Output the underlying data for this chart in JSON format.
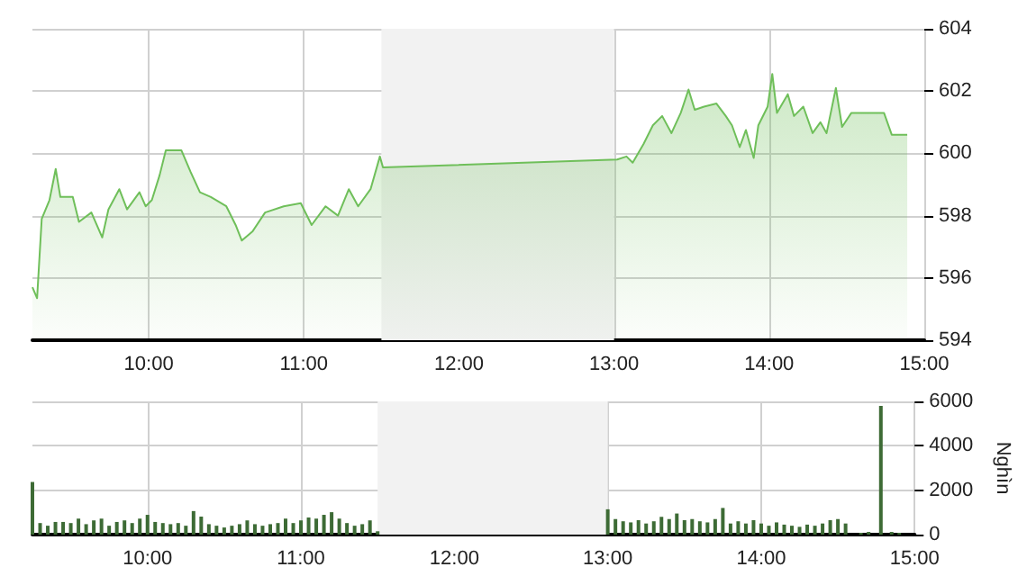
{
  "chart_data": [
    {
      "type": "area",
      "xlim": [
        9.25,
        15
      ],
      "xticks": [
        {
          "value": 10,
          "label": "10:00"
        },
        {
          "value": 11,
          "label": "11:00"
        },
        {
          "value": 12,
          "label": "12:00"
        },
        {
          "value": 13,
          "label": "13:00"
        },
        {
          "value": 14,
          "label": "14:00"
        },
        {
          "value": 15,
          "label": "15:00"
        }
      ],
      "ylim": [
        594,
        604
      ],
      "yticks": [
        594,
        596,
        598,
        600,
        602,
        604
      ],
      "grid": true,
      "bands": [
        {
          "axis": "x",
          "from": 11.5,
          "to": 13,
          "color": "#f2f2f2"
        }
      ],
      "series": [
        {
          "color": "#6fbf5a",
          "x": [
            9.25,
            9.28,
            9.31,
            9.36,
            9.4,
            9.43,
            9.51,
            9.55,
            9.63,
            9.7,
            9.74,
            9.81,
            9.86,
            9.94,
            9.98,
            10.02,
            10.07,
            10.11,
            10.15,
            10.21,
            10.27,
            10.33,
            10.4,
            10.5,
            10.56,
            10.6,
            10.67,
            10.75,
            10.87,
            10.98,
            11.05,
            11.14,
            11.22,
            11.29,
            11.35,
            11.43,
            11.49,
            11.51,
            13.02,
            13.08,
            13.12,
            13.19,
            13.25,
            13.31,
            13.37,
            13.43,
            13.48,
            13.52,
            13.58,
            13.66,
            13.72,
            13.76,
            13.81,
            13.85,
            13.9,
            13.93,
            13.99,
            14.02,
            14.05,
            14.12,
            14.16,
            14.22,
            14.28,
            14.33,
            14.37,
            14.43,
            14.47,
            14.53,
            14.74,
            14.79,
            14.89
          ],
          "values": [
            595.7,
            595.35,
            597.9,
            598.5,
            599.5,
            598.6,
            598.6,
            597.8,
            598.1,
            597.3,
            598.2,
            598.85,
            598.2,
            598.75,
            598.3,
            598.5,
            599.3,
            600.1,
            600.1,
            600.1,
            599.4,
            598.75,
            598.6,
            598.3,
            597.7,
            597.2,
            597.5,
            598.1,
            598.3,
            598.4,
            597.7,
            598.3,
            598.0,
            598.85,
            598.3,
            598.85,
            599.9,
            599.55,
            599.8,
            599.9,
            599.7,
            600.3,
            600.9,
            601.2,
            600.65,
            601.3,
            602.05,
            601.4,
            601.5,
            601.6,
            601.2,
            600.9,
            600.2,
            600.75,
            599.85,
            600.9,
            601.5,
            602.55,
            601.3,
            601.9,
            601.2,
            601.5,
            600.65,
            601.0,
            600.65,
            602.1,
            600.85,
            601.3,
            601.3,
            600.6,
            600.6
          ]
        }
      ]
    },
    {
      "type": "bar",
      "xlim": [
        9.25,
        15
      ],
      "xticks": [
        {
          "value": 10,
          "label": "10:00"
        },
        {
          "value": 11,
          "label": "11:00"
        },
        {
          "value": 12,
          "label": "12:00"
        },
        {
          "value": 13,
          "label": "13:00"
        },
        {
          "value": 14,
          "label": "14:00"
        },
        {
          "value": 15,
          "label": "15:00"
        }
      ],
      "ylim": [
        0,
        6000
      ],
      "yticks": [
        0,
        2000,
        4000,
        6000
      ],
      "ylabel": "Nghìn",
      "grid": true,
      "bands": [
        {
          "axis": "x",
          "from": 11.5,
          "to": 13,
          "color": "#f2f2f2"
        }
      ],
      "series": [
        {
          "color": "#3d6b35",
          "x": [
            9.25,
            9.3,
            9.35,
            9.4,
            9.45,
            9.5,
            9.55,
            9.6,
            9.65,
            9.7,
            9.75,
            9.8,
            9.85,
            9.9,
            9.95,
            10.0,
            10.05,
            10.1,
            10.15,
            10.2,
            10.25,
            10.3,
            10.35,
            10.4,
            10.45,
            10.5,
            10.55,
            10.6,
            10.65,
            10.7,
            10.75,
            10.8,
            10.85,
            10.9,
            10.95,
            11.0,
            11.05,
            11.1,
            11.15,
            11.2,
            11.25,
            11.3,
            11.35,
            11.4,
            11.45,
            11.5,
            13.0,
            13.05,
            13.1,
            13.15,
            13.2,
            13.25,
            13.3,
            13.35,
            13.4,
            13.45,
            13.5,
            13.55,
            13.6,
            13.65,
            13.7,
            13.75,
            13.8,
            13.85,
            13.9,
            13.95,
            14.0,
            14.05,
            14.1,
            14.15,
            14.2,
            14.25,
            14.3,
            14.35,
            14.4,
            14.45,
            14.5,
            14.55,
            14.65,
            14.7,
            14.78,
            14.85,
            14.9
          ],
          "values": [
            2370,
            520,
            400,
            570,
            570,
            520,
            720,
            470,
            640,
            720,
            400,
            570,
            640,
            520,
            720,
            890,
            570,
            520,
            470,
            520,
            400,
            1060,
            810,
            470,
            400,
            320,
            400,
            470,
            640,
            470,
            400,
            470,
            520,
            720,
            520,
            640,
            770,
            720,
            890,
            1010,
            720,
            520,
            400,
            470,
            640,
            150,
            1140,
            700,
            600,
            550,
            650,
            500,
            600,
            800,
            700,
            950,
            650,
            700,
            600,
            550,
            700,
            1200,
            500,
            600,
            500,
            650,
            500,
            400,
            550,
            450,
            400,
            350,
            450,
            400,
            500,
            650,
            700,
            500,
            80,
            120,
            5800,
            120,
            80
          ]
        }
      ]
    }
  ]
}
